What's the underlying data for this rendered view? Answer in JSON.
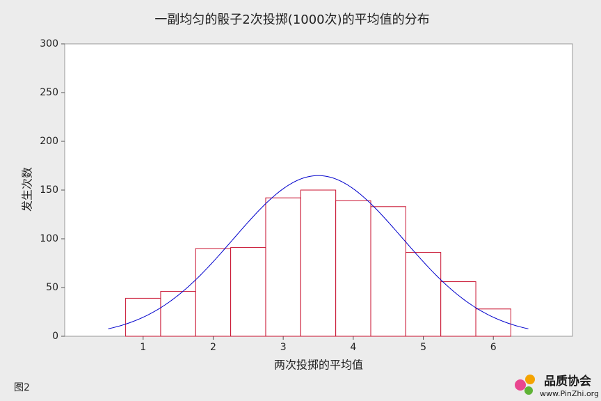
{
  "chart_data": {
    "type": "histogram",
    "title": "一副均匀的骰子2次投掷(1000次)的平均值的分布",
    "x_label": "两次投掷的平均值",
    "y_label": "发生次数",
    "bins": [
      0.75,
      1.25,
      1.75,
      2.25,
      2.75,
      3.25,
      3.75,
      4.25,
      4.75,
      5.25,
      5.75,
      6.25
    ],
    "values": [
      39,
      46,
      90,
      91,
      142,
      150,
      139,
      133,
      86,
      56,
      28
    ],
    "color": "#c8102e",
    "fit": {
      "mean": 3.5,
      "sd": 1.21,
      "range": [
        0.5,
        6.5
      ],
      "color": "#0000cc"
    },
    "xlim": [
      -0.12,
      7.13
    ],
    "xticks": [
      1,
      2,
      3,
      4,
      5,
      6
    ],
    "ylim": [
      0,
      300
    ],
    "yticks": [
      0,
      50,
      100,
      150,
      200,
      250,
      300
    ]
  },
  "caption": "图2",
  "watermark": {
    "name": "品质协会",
    "url": "www.PinZhi.org"
  }
}
